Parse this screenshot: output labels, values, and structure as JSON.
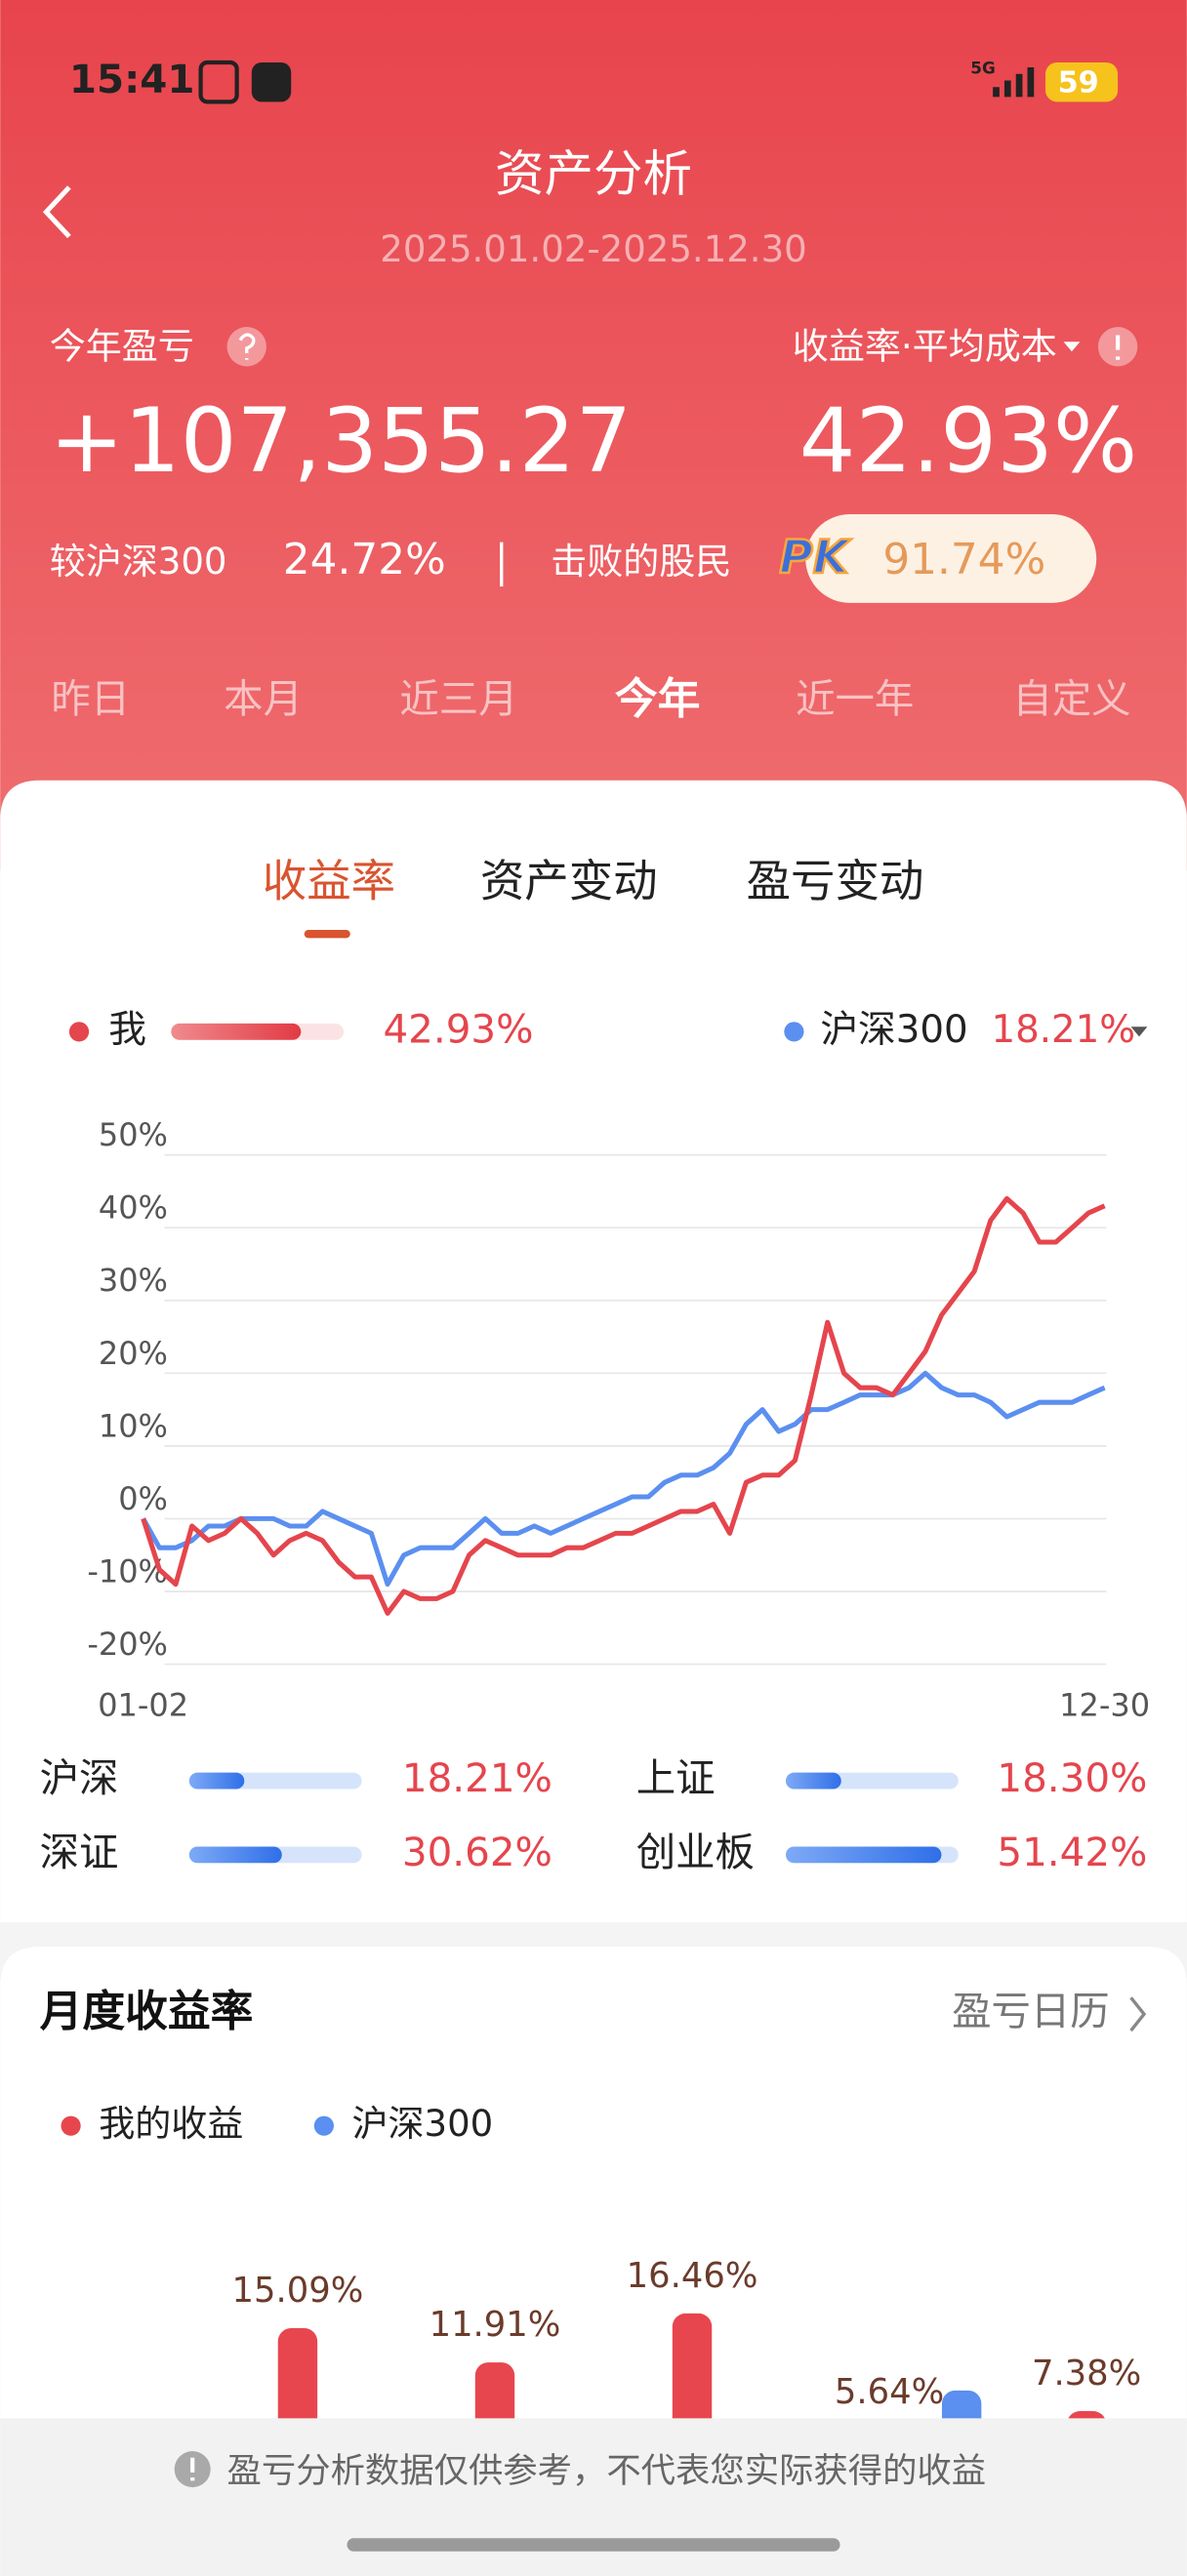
{
  "status_bar": {
    "time": "15:41",
    "network": "5G",
    "battery": "59"
  },
  "header": {
    "title": "资产分析",
    "date_range": "2025.01.02-2025.12.30"
  },
  "summary": {
    "pnl_label": "今年盈亏",
    "pnl_value": "+107,355.27",
    "rate_label": "收益率·平均成本",
    "rate_value": "42.93%",
    "compare_label": "较沪深300",
    "compare_value": "24.72%",
    "beat_label": "击败的股民",
    "pk": "PK",
    "beat_value": "91.74%"
  },
  "period_tabs": {
    "items": [
      "昨日",
      "本月",
      "近三月",
      "今年",
      "近一年",
      "自定义"
    ],
    "active": 3
  },
  "chart_tabs": {
    "items": [
      "收益率",
      "资产变动",
      "盈亏变动"
    ],
    "active": 0
  },
  "monthly": {
    "title": "月度收益率",
    "calendar_link": "盈亏日历"
  },
  "footer": {
    "notice": "盈亏分析数据仅供参考，不代表您实际获得的收益"
  },
  "chart_data": [
    {
      "type": "line",
      "categories": [
        "01-02",
        null,
        null,
        null,
        null,
        null,
        null,
        null,
        null,
        null,
        null,
        null,
        null,
        null,
        null,
        null,
        null,
        null,
        null,
        null,
        null,
        null,
        null,
        null,
        null,
        null,
        null,
        null,
        null,
        null,
        null,
        null,
        null,
        null,
        null,
        null,
        null,
        null,
        null,
        null,
        null,
        null,
        null,
        null,
        null,
        null,
        null,
        null,
        null,
        null,
        null,
        null,
        null,
        null,
        null,
        null,
        null,
        null,
        null,
        "12-30"
      ],
      "series": [
        {
          "name": "我",
          "color": "#e5454d",
          "latest": "42.93%",
          "values": [
            0,
            -7,
            -9,
            -1,
            -3,
            -2,
            0,
            -2,
            -5,
            -3,
            -2,
            -3,
            -6,
            -8,
            -8,
            -13,
            -10,
            -11,
            -11,
            -10,
            -5,
            -3,
            -4,
            -5,
            -5,
            -5,
            -4,
            -4,
            -3,
            -2,
            -2,
            -1,
            0,
            1,
            1,
            2,
            -2,
            5,
            6,
            6,
            8,
            17,
            27,
            20,
            18,
            18,
            17,
            20,
            23,
            28,
            31,
            34,
            41,
            44,
            42,
            38,
            38,
            40,
            42,
            43
          ]
        },
        {
          "name": "沪深300",
          "color": "#5b8ff0",
          "latest": "18.21%",
          "values": [
            0,
            -4,
            -4,
            -3,
            -1,
            -1,
            0,
            0,
            0,
            -1,
            -1,
            1,
            0,
            -1,
            -2,
            -9,
            -5,
            -4,
            -4,
            -4,
            -2,
            0,
            -2,
            -2,
            -1,
            -2,
            -1,
            0,
            1,
            2,
            3,
            3,
            5,
            6,
            6,
            7,
            9,
            13,
            15,
            12,
            13,
            15,
            15,
            16,
            17,
            17,
            17,
            18,
            20,
            18,
            17,
            17,
            16,
            14,
            15,
            16,
            16,
            16,
            17,
            18
          ]
        }
      ],
      "ylim": [
        -20,
        50
      ],
      "yticks": [
        {
          "value": -20,
          "label": "-20%"
        },
        {
          "value": -10,
          "label": "-10%"
        },
        {
          "value": 0,
          "label": "0%"
        },
        {
          "value": 10,
          "label": "10%"
        },
        {
          "value": 20,
          "label": "20%"
        },
        {
          "value": 30,
          "label": "30%"
        },
        {
          "value": 40,
          "label": "40%"
        },
        {
          "value": 50,
          "label": "50%"
        }
      ],
      "grid": true
    },
    {
      "type": "progress",
      "categories": [
        "沪深",
        "上证",
        "深证",
        "创业板"
      ],
      "values": [
        18.21,
        18.3,
        30.62,
        51.42
      ],
      "value_labels": [
        "18.21%",
        "18.30%",
        "30.62%",
        "51.42%"
      ],
      "xlim": [
        0,
        57
      ],
      "color": "#3d7ff0"
    },
    {
      "type": "bar",
      "categories": [
        null,
        null,
        null,
        null,
        null
      ],
      "series": [
        {
          "name": "我的收益",
          "color": "#e8464e",
          "values": [
            15.09,
            11.91,
            16.46,
            5.64,
            7.38
          ],
          "value_labels": [
            "15.09%",
            "11.91%",
            "16.46%",
            "5.64%",
            "7.38%"
          ]
        },
        {
          "name": "沪深300",
          "color": "#5b8ff0",
          "values": [
            null,
            null,
            null,
            9.3,
            null
          ]
        }
      ],
      "ylim": [
        0,
        20
      ]
    }
  ]
}
